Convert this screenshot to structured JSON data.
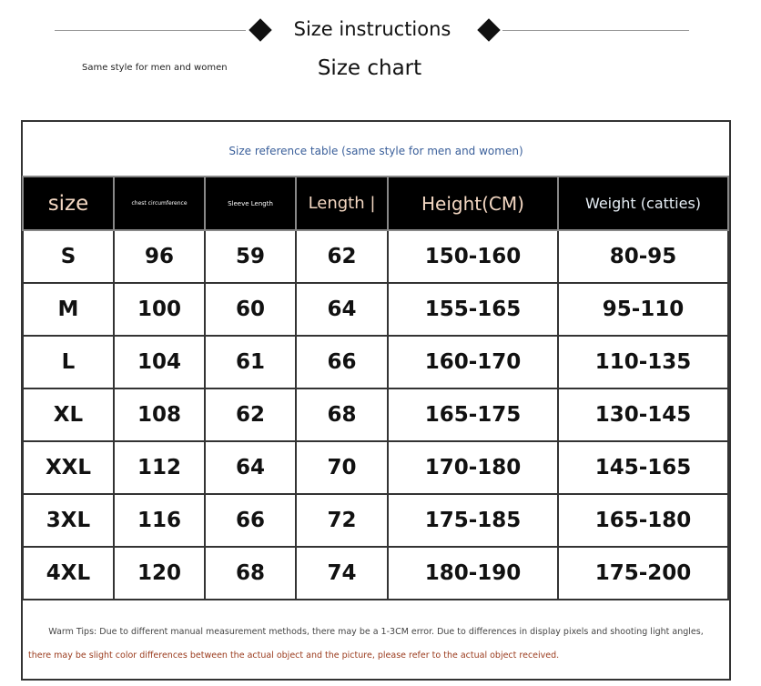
{
  "header": {
    "title": "Size instructions",
    "subtitle": "Size chart",
    "note": "Same style for men and women"
  },
  "table": {
    "caption": "Size reference table (same style for men and women)",
    "columns": [
      "size",
      "chest circumference",
      "Sleeve Length",
      "Length |",
      "Height(CM)",
      "Weight (catties)"
    ],
    "rows": [
      [
        "S",
        "96",
        "59",
        "62",
        "150-160",
        "80-95"
      ],
      [
        "M",
        "100",
        "60",
        "64",
        "155-165",
        "95-110"
      ],
      [
        "L",
        "104",
        "61",
        "66",
        "160-170",
        "110-135"
      ],
      [
        "XL",
        "108",
        "62",
        "68",
        "165-175",
        "130-145"
      ],
      [
        "XXL",
        "112",
        "64",
        "70",
        "170-180",
        "145-165"
      ],
      [
        "3XL",
        "116",
        "66",
        "72",
        "175-185",
        "165-180"
      ],
      [
        "4XL",
        "120",
        "68",
        "74",
        "180-190",
        "175-200"
      ]
    ]
  },
  "tips": {
    "line1": "Warm Tips: Due to different manual measurement methods, there may be a 1-3CM error. Due to differences in display pixels and shooting light angles,",
    "line2": "there may be slight color differences between the actual object and the picture, please refer to the actual object received."
  }
}
